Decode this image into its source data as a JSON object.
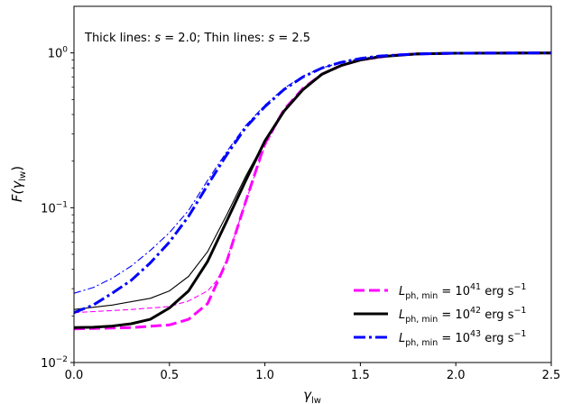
{
  "chart_data": {
    "type": "line",
    "annotation": "Thick lines: s = 2.0; Thin lines: s = 2.5",
    "xlabel": "γ_lw",
    "ylabel": "F(γ_lw)",
    "xlim": [
      0.0,
      2.5
    ],
    "ylim": [
      0.01,
      2.0
    ],
    "yscale": "log",
    "grid": false,
    "legend_position": "lower-right",
    "x_ticks": [
      "0.0",
      "0.5",
      "1.0",
      "1.5",
      "2.0",
      "2.5"
    ],
    "y_ticks": [
      "10^-2",
      "10^-1",
      "10^0"
    ],
    "series": [
      {
        "name": "L_ph,min = 10^41 erg s^-1",
        "color": "#ff00ff",
        "dash": "dashed",
        "weight": "thick",
        "s": 2.0,
        "x": [
          0.0,
          0.3,
          0.5,
          0.6,
          0.7,
          0.8,
          0.9,
          1.0,
          1.1,
          1.2,
          1.3,
          1.4,
          1.5,
          1.6,
          1.7,
          1.8,
          2.0,
          2.3,
          2.5
        ],
        "y": [
          0.0165,
          0.0168,
          0.0175,
          0.019,
          0.024,
          0.045,
          0.11,
          0.26,
          0.43,
          0.59,
          0.73,
          0.83,
          0.9,
          0.945,
          0.97,
          0.985,
          0.995,
          0.998,
          1.0
        ]
      },
      {
        "name": "L_ph,min = 10^41 erg s^-1",
        "color": "#ff00ff",
        "dash": "dashed",
        "weight": "thin",
        "s": 2.5,
        "x": [
          0.0,
          0.3,
          0.5,
          0.6,
          0.7,
          0.75,
          0.8,
          0.9,
          1.0,
          1.1,
          1.2,
          1.3,
          1.4,
          1.5,
          1.7,
          2.0,
          2.5
        ],
        "y": [
          0.021,
          0.022,
          0.023,
          0.025,
          0.029,
          0.034,
          0.046,
          0.11,
          0.25,
          0.42,
          0.58,
          0.72,
          0.82,
          0.89,
          0.965,
          0.99,
          1.0
        ]
      },
      {
        "name": "L_ph,min = 10^42 erg s^-1",
        "color": "#000000",
        "dash": "solid",
        "weight": "thick",
        "s": 2.0,
        "x": [
          0.0,
          0.1,
          0.2,
          0.3,
          0.4,
          0.5,
          0.6,
          0.7,
          0.8,
          0.9,
          1.0,
          1.1,
          1.2,
          1.3,
          1.4,
          1.5,
          1.6,
          1.8,
          2.0,
          2.5
        ],
        "y": [
          0.0168,
          0.0169,
          0.0172,
          0.0178,
          0.019,
          0.0225,
          0.029,
          0.045,
          0.082,
          0.15,
          0.27,
          0.42,
          0.58,
          0.73,
          0.83,
          0.9,
          0.945,
          0.985,
          0.995,
          1.0
        ]
      },
      {
        "name": "L_ph,min = 10^42 erg s^-1",
        "color": "#000000",
        "dash": "solid",
        "weight": "thin",
        "s": 2.5,
        "x": [
          0.0,
          0.2,
          0.4,
          0.5,
          0.6,
          0.7,
          0.8,
          0.9,
          1.0,
          1.1,
          1.2,
          1.3,
          1.4,
          1.5,
          1.7,
          2.0,
          2.5
        ],
        "y": [
          0.022,
          0.0235,
          0.026,
          0.029,
          0.036,
          0.052,
          0.09,
          0.16,
          0.27,
          0.42,
          0.58,
          0.72,
          0.83,
          0.9,
          0.965,
          0.99,
          1.0
        ]
      },
      {
        "name": "L_ph,min = 10^43 erg s^-1",
        "color": "#0000ff",
        "dash": "dashdot",
        "weight": "thick",
        "s": 2.0,
        "x": [
          0.0,
          0.1,
          0.2,
          0.3,
          0.4,
          0.5,
          0.6,
          0.7,
          0.8,
          0.9,
          1.0,
          1.1,
          1.2,
          1.3,
          1.4,
          1.5,
          1.6,
          1.8,
          2.0,
          2.5
        ],
        "y": [
          0.021,
          0.0235,
          0.028,
          0.034,
          0.044,
          0.06,
          0.088,
          0.14,
          0.22,
          0.33,
          0.45,
          0.58,
          0.7,
          0.8,
          0.87,
          0.92,
          0.955,
          0.985,
          0.995,
          1.0
        ]
      },
      {
        "name": "L_ph,min = 10^43 erg s^-1",
        "color": "#0000ff",
        "dash": "dashdot",
        "weight": "thin",
        "s": 2.5,
        "x": [
          0.0,
          0.1,
          0.2,
          0.3,
          0.4,
          0.5,
          0.6,
          0.7,
          0.8,
          0.9,
          1.0,
          1.1,
          1.2,
          1.3,
          1.4,
          1.5,
          1.7,
          2.0,
          2.5
        ],
        "y": [
          0.028,
          0.0305,
          0.035,
          0.042,
          0.053,
          0.069,
          0.096,
          0.15,
          0.23,
          0.34,
          0.46,
          0.59,
          0.71,
          0.8,
          0.87,
          0.92,
          0.97,
          0.99,
          1.0
        ]
      }
    ],
    "legend": [
      {
        "name": "L_ph,min = 10^41 erg s^-1",
        "color": "#ff00ff",
        "dash": "dashed",
        "exp": "41"
      },
      {
        "name": "L_ph,min = 10^42 erg s^-1",
        "color": "#000000",
        "dash": "solid",
        "exp": "42"
      },
      {
        "name": "L_ph,min = 10^43 erg s^-1",
        "color": "#0000ff",
        "dash": "dashdot",
        "exp": "43"
      }
    ]
  }
}
